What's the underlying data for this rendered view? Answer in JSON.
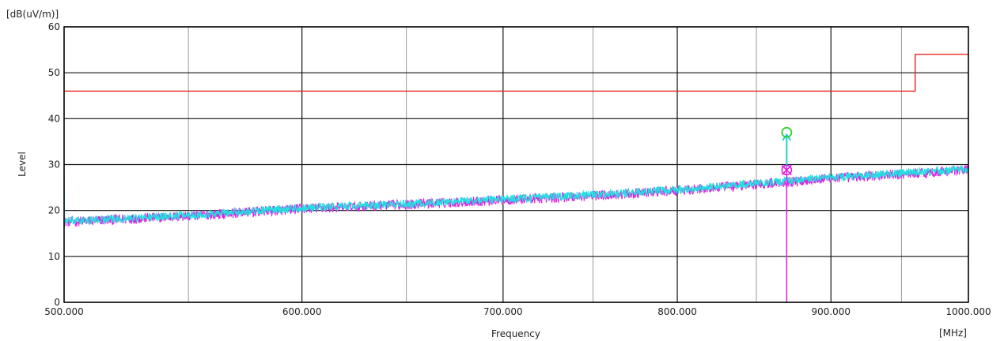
{
  "chart_data": {
    "type": "line",
    "title": "",
    "xlabel": "Frequency",
    "ylabel": "Level",
    "y_unit": "[dB(uV/m)]",
    "x_unit": "[MHz]",
    "xlim": [
      500,
      1000
    ],
    "ylim": [
      0,
      60
    ],
    "x_log_scale": true,
    "x_ticks": [
      500,
      600,
      700,
      800,
      900,
      1000
    ],
    "x_tick_labels": [
      "500.000",
      "600.000",
      "700.000",
      "800.000",
      "900.000",
      "1000.000"
    ],
    "x_minor_ticks": [
      550,
      650,
      750,
      850,
      950
    ],
    "y_ticks": [
      0,
      10,
      20,
      30,
      40,
      50,
      60
    ],
    "y_tick_labels": [
      "0",
      "10",
      "20",
      "30",
      "40",
      "50",
      "60"
    ],
    "grid": true,
    "limit_line": {
      "color": "#e8231e",
      "x": [
        500,
        960,
        960,
        1000
      ],
      "y": [
        46,
        46,
        54,
        54
      ]
    },
    "series": [
      {
        "color": "#e020e0",
        "x": [
          500,
          550,
          600,
          650,
          700,
          750,
          800,
          850,
          900,
          950,
          1000
        ],
        "y": [
          17.5,
          18.8,
          20.4,
          21.3,
          22.3,
          23.2,
          24.3,
          25.7,
          27.0,
          27.9,
          28.9
        ],
        "noise": 1.1
      },
      {
        "color": "#20e0e0",
        "x": [
          500,
          550,
          600,
          650,
          700,
          750,
          800,
          850,
          900,
          950,
          1000
        ],
        "y": [
          17.6,
          19.0,
          20.6,
          21.4,
          22.5,
          23.4,
          24.5,
          25.9,
          27.2,
          28.1,
          29.0
        ],
        "noise": 0.9
      }
    ],
    "markers": [
      {
        "type": "qp-circle",
        "color": "#30d030",
        "x": 870,
        "y": 37.0
      },
      {
        "type": "peak-cross-circle",
        "color": "#e020e0",
        "x": 870,
        "y": 28.8
      }
    ],
    "spike": {
      "color": "#e020e0",
      "x": 870,
      "y_from": 0,
      "y_to": 29.5
    },
    "spike_arrow": {
      "color": "#20d0d0",
      "x": 870,
      "y_from": 29.5,
      "y_to": 36.5
    }
  }
}
